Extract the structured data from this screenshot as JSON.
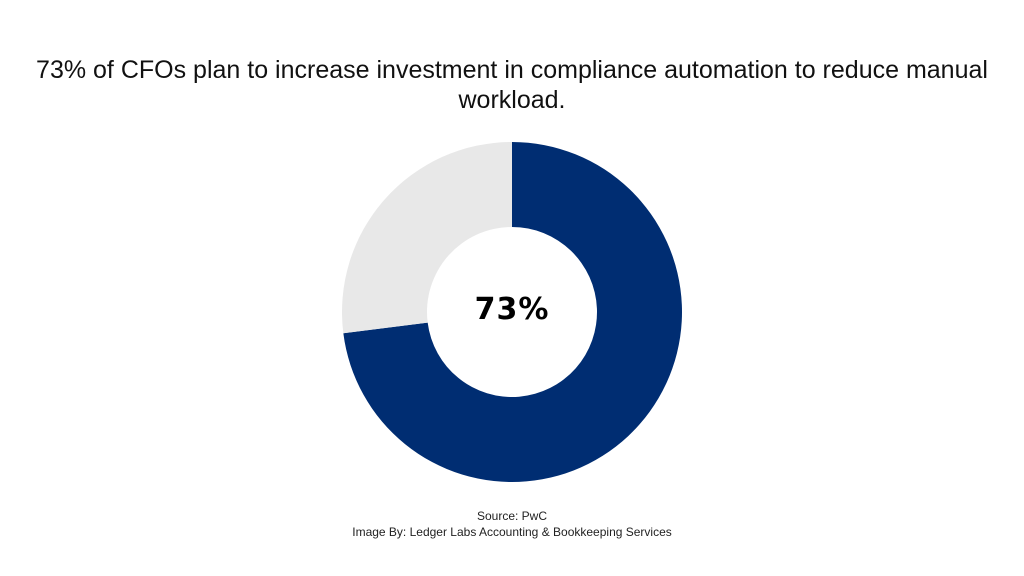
{
  "title": "73% of CFOs plan to increase investment in compliance automation to reduce manual workload.",
  "chart_data": {
    "type": "pie",
    "variant": "donut",
    "title": "73% of CFOs plan to increase investment in compliance automation to reduce manual workload.",
    "slices": [
      {
        "value": 73,
        "color": "#002d72"
      },
      {
        "value": 27,
        "color": "#e8e8e8"
      }
    ],
    "center_label": "73%",
    "legend": "none"
  },
  "footer": {
    "source": "Source: PwC",
    "credit": "Image By: Ledger Labs Accounting & Bookkeeping Services"
  }
}
